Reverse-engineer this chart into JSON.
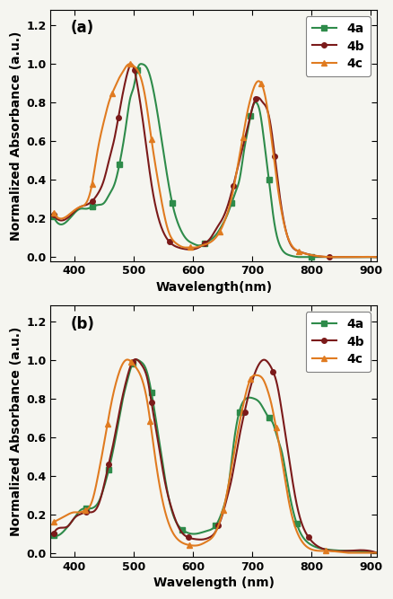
{
  "panel_a": {
    "label": "(a)",
    "xlabel": "Wavelength(nm)",
    "ylabel": "Normalized Absorbance (a.u.)",
    "xlim": [
      360,
      910
    ],
    "ylim": [
      -0.02,
      1.28
    ],
    "yticks": [
      0.0,
      0.2,
      0.4,
      0.6,
      0.8,
      1.0,
      1.2
    ],
    "xticks": [
      400,
      500,
      600,
      700,
      800,
      900
    ],
    "series": {
      "4a": {
        "color": "#2e8b4a",
        "marker": "s",
        "x": [
          365,
          380,
          395,
          410,
          420,
          430,
          440,
          450,
          460,
          468,
          476,
          482,
          488,
          494,
          500,
          506,
          514,
          524,
          536,
          550,
          565,
          578,
          590,
          600,
          610,
          620,
          630,
          640,
          650,
          658,
          665,
          672,
          679,
          686,
          692,
          697,
          702,
          707,
          713,
          720,
          728,
          737,
          748,
          762,
          778,
          800,
          830,
          870,
          910
        ],
        "y": [
          0.21,
          0.17,
          0.21,
          0.25,
          0.25,
          0.26,
          0.27,
          0.28,
          0.33,
          0.38,
          0.48,
          0.58,
          0.7,
          0.82,
          0.88,
          0.97,
          1.0,
          0.97,
          0.82,
          0.55,
          0.28,
          0.15,
          0.09,
          0.07,
          0.06,
          0.07,
          0.09,
          0.12,
          0.17,
          0.22,
          0.28,
          0.34,
          0.41,
          0.55,
          0.65,
          0.73,
          0.79,
          0.8,
          0.75,
          0.6,
          0.4,
          0.18,
          0.05,
          0.01,
          0.0,
          0.0,
          0.0,
          0.0,
          0.0
        ]
      },
      "4b": {
        "color": "#7b1a1a",
        "marker": "o",
        "x": [
          365,
          380,
          395,
          410,
          420,
          430,
          440,
          450,
          460,
          468,
          474,
          480,
          486,
          491,
          496,
          501,
          508,
          518,
          530,
          545,
          560,
          575,
          590,
          600,
          610,
          620,
          630,
          640,
          650,
          660,
          668,
          676,
          684,
          692,
          699,
          706,
          713,
          718,
          723,
          730,
          738,
          748,
          760,
          778,
          800,
          830,
          870,
          910
        ],
        "y": [
          0.22,
          0.19,
          0.22,
          0.26,
          0.27,
          0.29,
          0.33,
          0.4,
          0.52,
          0.62,
          0.72,
          0.82,
          0.91,
          0.97,
          1.0,
          0.97,
          0.86,
          0.65,
          0.38,
          0.17,
          0.08,
          0.05,
          0.04,
          0.04,
          0.05,
          0.07,
          0.1,
          0.15,
          0.2,
          0.28,
          0.37,
          0.47,
          0.57,
          0.67,
          0.76,
          0.82,
          0.82,
          0.8,
          0.78,
          0.7,
          0.52,
          0.28,
          0.1,
          0.03,
          0.01,
          0.0,
          0.0,
          0.0
        ]
      },
      "4c": {
        "color": "#e07b20",
        "marker": "^",
        "x": [
          365,
          380,
          395,
          410,
          420,
          430,
          438,
          445,
          452,
          458,
          464,
          470,
          476,
          482,
          488,
          494,
          500,
          506,
          512,
          520,
          530,
          543,
          558,
          572,
          585,
          595,
          605,
          615,
          625,
          635,
          645,
          655,
          663,
          670,
          677,
          684,
          691,
          697,
          703,
          709,
          715,
          722,
          730,
          742,
          758,
          778,
          800,
          830,
          870,
          910
        ],
        "y": [
          0.23,
          0.2,
          0.23,
          0.26,
          0.28,
          0.38,
          0.53,
          0.64,
          0.73,
          0.8,
          0.85,
          0.89,
          0.93,
          0.96,
          0.99,
          1.0,
          0.99,
          0.97,
          0.93,
          0.82,
          0.61,
          0.36,
          0.14,
          0.07,
          0.05,
          0.05,
          0.05,
          0.06,
          0.07,
          0.09,
          0.13,
          0.2,
          0.28,
          0.38,
          0.5,
          0.62,
          0.74,
          0.82,
          0.88,
          0.91,
          0.9,
          0.83,
          0.67,
          0.38,
          0.12,
          0.03,
          0.01,
          0.0,
          0.0,
          0.0
        ]
      }
    }
  },
  "panel_b": {
    "label": "(b)",
    "xlabel": "Wavelength (nm)",
    "ylabel": "Normalized Absorbance (a.u.)",
    "xlim": [
      360,
      910
    ],
    "ylim": [
      -0.02,
      1.28
    ],
    "yticks": [
      0.0,
      0.2,
      0.4,
      0.6,
      0.8,
      1.0,
      1.2
    ],
    "xticks": [
      400,
      500,
      600,
      700,
      800,
      900
    ],
    "series": {
      "4a": {
        "color": "#2e8b4a",
        "marker": "s",
        "x": [
          365,
          378,
          390,
          400,
          410,
          420,
          428,
          435,
          442,
          450,
          458,
          466,
          474,
          482,
          490,
          498,
          506,
          512,
          518,
          524,
          530,
          538,
          548,
          558,
          570,
          582,
          595,
          608,
          620,
          630,
          638,
          645,
          652,
          660,
          668,
          678,
          690,
          702,
          712,
          720,
          728,
          735,
          742,
          750,
          760,
          775,
          795,
          820,
          860,
          910
        ],
        "y": [
          0.09,
          0.1,
          0.14,
          0.18,
          0.22,
          0.23,
          0.23,
          0.24,
          0.27,
          0.34,
          0.43,
          0.54,
          0.67,
          0.8,
          0.9,
          0.98,
          1.0,
          0.99,
          0.97,
          0.92,
          0.83,
          0.68,
          0.48,
          0.3,
          0.17,
          0.12,
          0.1,
          0.1,
          0.11,
          0.12,
          0.14,
          0.18,
          0.24,
          0.35,
          0.55,
          0.73,
          0.8,
          0.8,
          0.78,
          0.74,
          0.7,
          0.67,
          0.6,
          0.52,
          0.35,
          0.15,
          0.05,
          0.02,
          0.01,
          0.0
        ]
      },
      "4b": {
        "color": "#7b1a1a",
        "marker": "o",
        "x": [
          365,
          378,
          390,
          400,
          410,
          420,
          428,
          435,
          442,
          450,
          458,
          466,
          474,
          482,
          490,
          498,
          506,
          512,
          518,
          524,
          530,
          540,
          552,
          565,
          578,
          592,
          606,
          618,
          628,
          636,
          643,
          650,
          657,
          665,
          675,
          687,
          699,
          710,
          720,
          728,
          735,
          742,
          750,
          760,
          775,
          795,
          820,
          860,
          910
        ],
        "y": [
          0.1,
          0.13,
          0.14,
          0.18,
          0.2,
          0.21,
          0.21,
          0.22,
          0.26,
          0.35,
          0.46,
          0.57,
          0.7,
          0.82,
          0.92,
          0.99,
          1.0,
          0.98,
          0.95,
          0.89,
          0.78,
          0.6,
          0.38,
          0.22,
          0.12,
          0.08,
          0.07,
          0.07,
          0.08,
          0.1,
          0.14,
          0.2,
          0.28,
          0.38,
          0.55,
          0.73,
          0.88,
          0.97,
          1.0,
          0.98,
          0.94,
          0.87,
          0.73,
          0.53,
          0.25,
          0.08,
          0.02,
          0.01,
          0.0
        ]
      },
      "4c": {
        "color": "#e07b20",
        "marker": "^",
        "x": [
          365,
          378,
          390,
          400,
          410,
          418,
          426,
          433,
          440,
          448,
          456,
          464,
          472,
          480,
          488,
          496,
          504,
          510,
          516,
          522,
          528,
          536,
          548,
          562,
          578,
          594,
          610,
          624,
          635,
          644,
          651,
          658,
          665,
          674,
          685,
          697,
          708,
          718,
          726,
          733,
          740,
          750,
          762,
          778,
          798,
          824,
          860,
          910
        ],
        "y": [
          0.16,
          0.18,
          0.2,
          0.21,
          0.21,
          0.22,
          0.24,
          0.3,
          0.4,
          0.53,
          0.67,
          0.8,
          0.9,
          0.97,
          1.0,
          0.99,
          0.96,
          0.93,
          0.88,
          0.8,
          0.68,
          0.5,
          0.28,
          0.13,
          0.06,
          0.04,
          0.04,
          0.06,
          0.09,
          0.15,
          0.22,
          0.32,
          0.44,
          0.6,
          0.77,
          0.9,
          0.92,
          0.9,
          0.84,
          0.76,
          0.65,
          0.48,
          0.26,
          0.09,
          0.02,
          0.01,
          0.0,
          0.0
        ]
      }
    }
  },
  "legend_fontsize": 10,
  "axis_label_fontsize": 10,
  "tick_fontsize": 9,
  "marker_size": 4,
  "line_width": 1.5,
  "marker_every": 5,
  "bg_color": "#f5f5f0"
}
